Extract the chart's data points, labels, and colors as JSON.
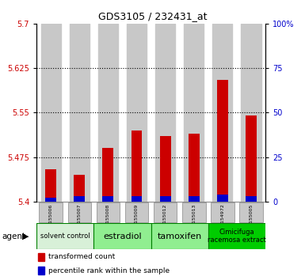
{
  "title": "GDS3105 / 232431_at",
  "samples": [
    "GSM155006",
    "GSM155007",
    "GSM155008",
    "GSM155009",
    "GSM155012",
    "GSM155013",
    "GSM154972",
    "GSM155005"
  ],
  "red_values": [
    5.455,
    5.445,
    5.49,
    5.52,
    5.51,
    5.515,
    5.605,
    5.545
  ],
  "blue_values": [
    2.0,
    3.0,
    3.0,
    3.0,
    3.0,
    3.0,
    4.0,
    3.0
  ],
  "ymin": 5.4,
  "ymax": 5.7,
  "yticks": [
    5.4,
    5.475,
    5.55,
    5.625,
    5.7
  ],
  "ytick_labels": [
    "5.4",
    "5.475",
    "5.55",
    "5.625",
    "5.7"
  ],
  "right_yticks": [
    0,
    25,
    50,
    75,
    100
  ],
  "right_ytick_labels": [
    "0",
    "25",
    "50",
    "75",
    "100%"
  ],
  "groups": [
    {
      "label": "solvent control",
      "start": 0,
      "end": 2,
      "color": "#d8f0d8",
      "fontsize": 6
    },
    {
      "label": "estradiol",
      "start": 2,
      "end": 4,
      "color": "#90ee90",
      "fontsize": 8
    },
    {
      "label": "tamoxifen",
      "start": 4,
      "end": 6,
      "color": "#90ee90",
      "fontsize": 8
    },
    {
      "label": "Cimicifuga\nracemosa extract",
      "start": 6,
      "end": 8,
      "color": "#00cc00",
      "fontsize": 6
    }
  ],
  "agent_label": "agent",
  "legend_red": "transformed count",
  "legend_blue": "percentile rank within the sample",
  "bar_bg_color": "#c8c8c8",
  "plot_bg_color": "#ffffff",
  "red_color": "#cc0000",
  "blue_color": "#0000cc",
  "dotted_line_color": "#000000",
  "group_border_color": "#008000",
  "sample_box_color": "#c8c8c8",
  "sample_box_border": "#888888"
}
